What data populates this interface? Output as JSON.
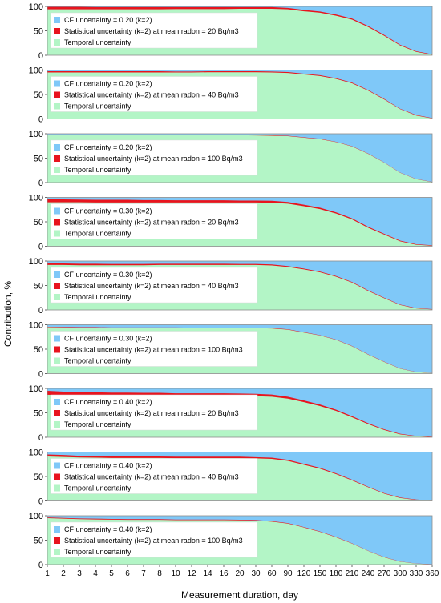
{
  "figure": {
    "ylabel": "Contribution, %",
    "xlabel": "Measurement duration, day",
    "x_ticks": [
      "1",
      "2",
      "3",
      "4",
      "5",
      "6",
      "7",
      "8",
      "10",
      "12",
      "14",
      "16",
      "20",
      "30",
      "60",
      "90",
      "120",
      "150",
      "180",
      "210",
      "240",
      "270",
      "300",
      "330",
      "360"
    ],
    "y_ticks": [
      "0",
      "50",
      "100"
    ]
  },
  "colors": {
    "cf": "#7fc8f8",
    "statistical": "#e8141e",
    "temporal": "#b3f5c6",
    "panel_border": "#8c8c8c"
  },
  "chart_data": [
    {
      "type": "area",
      "x": [
        "1",
        "2",
        "3",
        "4",
        "5",
        "6",
        "7",
        "8",
        "10",
        "12",
        "14",
        "16",
        "20",
        "30",
        "60",
        "90",
        "120",
        "150",
        "180",
        "210",
        "240",
        "270",
        "300",
        "330",
        "360"
      ],
      "ylim": [
        0,
        100
      ],
      "series": [
        {
          "name": "CF uncertainty = 0.20 (k=2)"
        },
        {
          "name": "Statistical uncertainty (k=2) at mean radon = 20 Bq/m3"
        },
        {
          "name": "Temporal uncertainty"
        }
      ],
      "temporal": [
        94,
        94,
        94,
        94,
        94,
        94,
        94,
        94,
        94.5,
        94.5,
        94.5,
        94.5,
        95,
        95,
        95,
        94,
        90,
        87,
        81,
        73,
        58,
        40,
        20,
        7,
        1
      ],
      "statistical": [
        5,
        5,
        5,
        4.5,
        4.5,
        4.5,
        4.5,
        4.5,
        4,
        4,
        4,
        4,
        3.5,
        3.5,
        3.5,
        3,
        2.8,
        2.6,
        2.4,
        2.2,
        2,
        1.8,
        1.6,
        1.3,
        1
      ]
    },
    {
      "type": "area",
      "x": [
        "1",
        "2",
        "3",
        "4",
        "5",
        "6",
        "7",
        "8",
        "10",
        "12",
        "14",
        "16",
        "20",
        "30",
        "60",
        "90",
        "120",
        "150",
        "180",
        "210",
        "240",
        "270",
        "300",
        "330",
        "360"
      ],
      "ylim": [
        0,
        100
      ],
      "series": [
        {
          "name": "CF uncertainty = 0.20 (k=2)"
        },
        {
          "name": "Statistical uncertainty (k=2) at mean radon = 40 Bq/m3"
        },
        {
          "name": "Temporal uncertainty"
        }
      ],
      "temporal": [
        95,
        95,
        95,
        95,
        95,
        95,
        95,
        95,
        95,
        95,
        95.5,
        95.5,
        95.5,
        95.5,
        95,
        94,
        91,
        88,
        82,
        73,
        58,
        40,
        20,
        7,
        1
      ],
      "statistical": [
        2.5,
        2.5,
        2.5,
        2.5,
        2.5,
        2.5,
        2.5,
        2.5,
        2,
        2,
        2,
        2,
        2,
        2,
        2,
        1.8,
        1.6,
        1.5,
        1.4,
        1.3,
        1.2,
        1.1,
        1,
        0.9,
        0.8
      ]
    },
    {
      "type": "area",
      "x": [
        "1",
        "2",
        "3",
        "4",
        "5",
        "6",
        "7",
        "8",
        "10",
        "12",
        "14",
        "16",
        "20",
        "30",
        "60",
        "90",
        "120",
        "150",
        "180",
        "210",
        "240",
        "270",
        "300",
        "330",
        "360"
      ],
      "ylim": [
        0,
        100
      ],
      "series": [
        {
          "name": "CF uncertainty = 0.20 (k=2)"
        },
        {
          "name": "Statistical uncertainty (k=2) at mean radon = 100 Bq/m3"
        },
        {
          "name": "Temporal uncertainty"
        }
      ],
      "temporal": [
        97,
        97,
        97,
        97,
        97,
        97,
        97,
        97,
        97,
        97,
        97,
        97,
        97,
        96.5,
        96,
        95,
        92,
        89,
        83,
        74,
        59,
        41,
        20,
        7,
        1
      ],
      "statistical": [
        1,
        1,
        1,
        1,
        1,
        1,
        1,
        1,
        1,
        1,
        1,
        1,
        1,
        1,
        1,
        0.9,
        0.8,
        0.8,
        0.7,
        0.6,
        0.6,
        0.5,
        0.5,
        0.4,
        0.4
      ]
    },
    {
      "type": "area",
      "x": [
        "1",
        "2",
        "3",
        "4",
        "5",
        "6",
        "7",
        "8",
        "10",
        "12",
        "14",
        "16",
        "20",
        "30",
        "60",
        "90",
        "120",
        "150",
        "180",
        "210",
        "240",
        "270",
        "300",
        "330",
        "360"
      ],
      "ylim": [
        0,
        100
      ],
      "series": [
        {
          "name": "CF uncertainty = 0.30 (k=2)"
        },
        {
          "name": "Statistical uncertainty (k=2) at mean radon = 20 Bq/m3"
        },
        {
          "name": "Temporal uncertainty"
        }
      ],
      "temporal": [
        90,
        90,
        90,
        89.5,
        89.5,
        89.5,
        89.5,
        89.5,
        89.5,
        89.5,
        89.5,
        89.5,
        89.5,
        89.5,
        89,
        87,
        82,
        76,
        67,
        55,
        38,
        24,
        10,
        3,
        1
      ],
      "statistical": [
        6,
        6,
        5.5,
        5.5,
        5.5,
        5.5,
        5,
        5,
        4.5,
        4.5,
        4.5,
        4.5,
        4,
        4,
        4,
        3.5,
        3,
        2.8,
        2.5,
        2.2,
        2,
        1.7,
        1.4,
        1.2,
        1
      ]
    },
    {
      "type": "area",
      "x": [
        "1",
        "2",
        "3",
        "4",
        "5",
        "6",
        "7",
        "8",
        "10",
        "12",
        "14",
        "16",
        "20",
        "30",
        "60",
        "90",
        "120",
        "150",
        "180",
        "210",
        "240",
        "270",
        "300",
        "330",
        "360"
      ],
      "ylim": [
        0,
        100
      ],
      "series": [
        {
          "name": "CF uncertainty = 0.30 (k=2)"
        },
        {
          "name": "Statistical uncertainty (k=2) at mean radon = 40 Bq/m3"
        },
        {
          "name": "Temporal uncertainty"
        }
      ],
      "temporal": [
        92,
        92,
        91.5,
        91.5,
        91.5,
        91.5,
        91.5,
        92,
        92,
        92,
        92,
        92,
        92,
        92,
        91,
        88,
        83,
        77,
        68,
        56,
        39,
        24,
        10,
        3,
        1
      ],
      "statistical": [
        3,
        3,
        3,
        3,
        2.5,
        2.5,
        2.5,
        2.5,
        2.5,
        2.5,
        2.5,
        2.5,
        2,
        2,
        2,
        1.8,
        1.6,
        1.5,
        1.4,
        1.2,
        1.1,
        1,
        0.9,
        0.8,
        0.7
      ]
    },
    {
      "type": "area",
      "x": [
        "1",
        "2",
        "3",
        "4",
        "5",
        "6",
        "7",
        "8",
        "10",
        "12",
        "14",
        "16",
        "20",
        "30",
        "60",
        "90",
        "120",
        "150",
        "180",
        "210",
        "240",
        "270",
        "300",
        "330",
        "360"
      ],
      "ylim": [
        0,
        100
      ],
      "series": [
        {
          "name": "CF uncertainty = 0.30 (k=2)"
        },
        {
          "name": "Statistical uncertainty (k=2) at mean radon = 100 Bq/m3"
        },
        {
          "name": "Temporal uncertainty"
        }
      ],
      "temporal": [
        95,
        94.5,
        94,
        94,
        93.5,
        93.5,
        93.5,
        93.5,
        93.5,
        93,
        93,
        93,
        93,
        93,
        92.5,
        90,
        84,
        78,
        69,
        56,
        39,
        24,
        10,
        3,
        1
      ],
      "statistical": [
        1,
        1,
        1,
        1,
        1,
        1,
        1,
        1,
        1,
        1,
        1,
        1,
        1,
        1,
        0.9,
        0.8,
        0.8,
        0.7,
        0.7,
        0.6,
        0.5,
        0.5,
        0.4,
        0.4,
        0.3
      ]
    },
    {
      "type": "area",
      "x": [
        "1",
        "2",
        "3",
        "4",
        "5",
        "6",
        "7",
        "8",
        "10",
        "12",
        "14",
        "16",
        "20",
        "30",
        "60",
        "90",
        "120",
        "150",
        "180",
        "210",
        "240",
        "270",
        "300",
        "330",
        "360"
      ],
      "ylim": [
        0,
        100
      ],
      "series": [
        {
          "name": "CF uncertainty = 0.40 (k=2)"
        },
        {
          "name": "Statistical uncertainty (k=2) at mean radon = 20 Bq/m3"
        },
        {
          "name": "Temporal uncertainty"
        }
      ],
      "temporal": [
        87,
        86,
        85.5,
        85,
        85,
        85,
        85,
        85,
        84.5,
        84.5,
        84.5,
        84.5,
        84.5,
        84,
        83,
        79,
        72,
        64,
        54,
        41,
        27,
        15,
        6,
        2,
        0.5
      ],
      "statistical": [
        8,
        7.5,
        7,
        7,
        6.5,
        6.5,
        6,
        6,
        5.5,
        5.5,
        5.5,
        5.5,
        5,
        5,
        4.5,
        4,
        3.5,
        3,
        2.6,
        2.2,
        1.8,
        1.4,
        1.1,
        0.9,
        0.7
      ]
    },
    {
      "type": "area",
      "x": [
        "1",
        "2",
        "3",
        "4",
        "5",
        "6",
        "7",
        "8",
        "10",
        "12",
        "14",
        "16",
        "20",
        "30",
        "60",
        "90",
        "120",
        "150",
        "180",
        "210",
        "240",
        "270",
        "300",
        "330",
        "360"
      ],
      "ylim": [
        0,
        100
      ],
      "series": [
        {
          "name": "CF uncertainty = 0.40 (k=2)"
        },
        {
          "name": "Statistical uncertainty (k=2) at mean radon = 40 Bq/m3"
        },
        {
          "name": "Temporal uncertainty"
        }
      ],
      "temporal": [
        91,
        90,
        89,
        88.5,
        88,
        88,
        88,
        88,
        87.5,
        87.5,
        87.5,
        87.5,
        87.5,
        87,
        86,
        82,
        74,
        66,
        55,
        42,
        28,
        15,
        6,
        2,
        0.5
      ],
      "statistical": [
        4,
        4,
        3.5,
        3.5,
        3.5,
        3.5,
        3,
        3,
        3,
        3,
        3,
        3,
        3,
        2.5,
        2.5,
        2.2,
        2,
        1.8,
        1.6,
        1.4,
        1.2,
        1,
        0.9,
        0.8,
        0.6
      ]
    },
    {
      "type": "area",
      "x": [
        "1",
        "2",
        "3",
        "4",
        "5",
        "6",
        "7",
        "8",
        "10",
        "12",
        "14",
        "16",
        "20",
        "30",
        "60",
        "90",
        "120",
        "150",
        "180",
        "210",
        "240",
        "270",
        "300",
        "330",
        "360"
      ],
      "ylim": [
        0,
        100
      ],
      "series": [
        {
          "name": "CF uncertainty = 0.40 (k=2)"
        },
        {
          "name": "Statistical uncertainty (k=2) at mean radon = 100 Bq/m3"
        },
        {
          "name": "Temporal uncertainty"
        }
      ],
      "temporal": [
        95,
        94,
        93,
        92.5,
        92,
        91.5,
        91.5,
        91.5,
        91,
        91,
        91,
        91,
        90.5,
        90,
        88,
        84,
        76,
        67,
        56,
        43,
        28,
        15,
        6,
        2,
        0.5
      ],
      "statistical": [
        1.5,
        1.5,
        1.5,
        1.5,
        1.5,
        1.5,
        1.5,
        1.5,
        1.2,
        1.2,
        1.2,
        1.2,
        1.2,
        1.2,
        1,
        1,
        0.9,
        0.8,
        0.7,
        0.6,
        0.5,
        0.5,
        0.4,
        0.3,
        0.3
      ]
    }
  ]
}
